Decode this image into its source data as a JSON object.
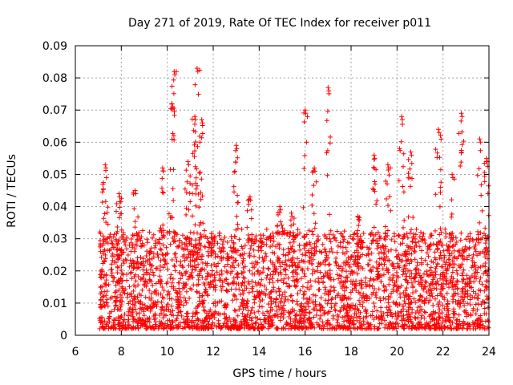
{
  "chart_data": {
    "type": "scatter",
    "title": "Day 271 of 2019, Rate Of TEC Index for receiver p011",
    "xlabel": "GPS time / hours",
    "ylabel": "ROTI / TECUs",
    "xlim": [
      6,
      24
    ],
    "ylim": [
      0,
      0.09
    ],
    "xticks": [
      "6",
      "8",
      "10",
      "12",
      "14",
      "16",
      "18",
      "20",
      "22",
      "24"
    ],
    "yticks": [
      "0",
      "0.01",
      "0.02",
      "0.03",
      "0.04",
      "0.05",
      "0.06",
      "0.07",
      "0.08",
      "0.09"
    ],
    "grid": true,
    "marker": "+",
    "color": "#ff0000",
    "x_data_start": 7.05,
    "x_data_end": 24.0,
    "baseline_range": [
      0.002,
      0.02
    ],
    "series": [
      {
        "name": "p011 ROTI",
        "note": "dense scatter of thousands of points; notable peaks listed",
        "peaks": [
          {
            "x": 7.3,
            "y": 0.053
          },
          {
            "x": 7.9,
            "y": 0.044
          },
          {
            "x": 8.6,
            "y": 0.045
          },
          {
            "x": 9.8,
            "y": 0.052
          },
          {
            "x": 10.2,
            "y": 0.072
          },
          {
            "x": 10.3,
            "y": 0.082
          },
          {
            "x": 10.9,
            "y": 0.054
          },
          {
            "x": 11.2,
            "y": 0.068
          },
          {
            "x": 11.3,
            "y": 0.083
          },
          {
            "x": 11.5,
            "y": 0.067
          },
          {
            "x": 13.0,
            "y": 0.059
          },
          {
            "x": 13.6,
            "y": 0.043
          },
          {
            "x": 14.9,
            "y": 0.04
          },
          {
            "x": 15.4,
            "y": 0.038
          },
          {
            "x": 16.0,
            "y": 0.07
          },
          {
            "x": 16.4,
            "y": 0.052
          },
          {
            "x": 17.0,
            "y": 0.077
          },
          {
            "x": 18.3,
            "y": 0.037
          },
          {
            "x": 19.0,
            "y": 0.056
          },
          {
            "x": 19.6,
            "y": 0.053
          },
          {
            "x": 20.2,
            "y": 0.068
          },
          {
            "x": 20.6,
            "y": 0.057
          },
          {
            "x": 21.8,
            "y": 0.064
          },
          {
            "x": 22.4,
            "y": 0.05
          },
          {
            "x": 22.8,
            "y": 0.069
          },
          {
            "x": 23.6,
            "y": 0.061
          },
          {
            "x": 23.9,
            "y": 0.055
          }
        ]
      }
    ]
  }
}
